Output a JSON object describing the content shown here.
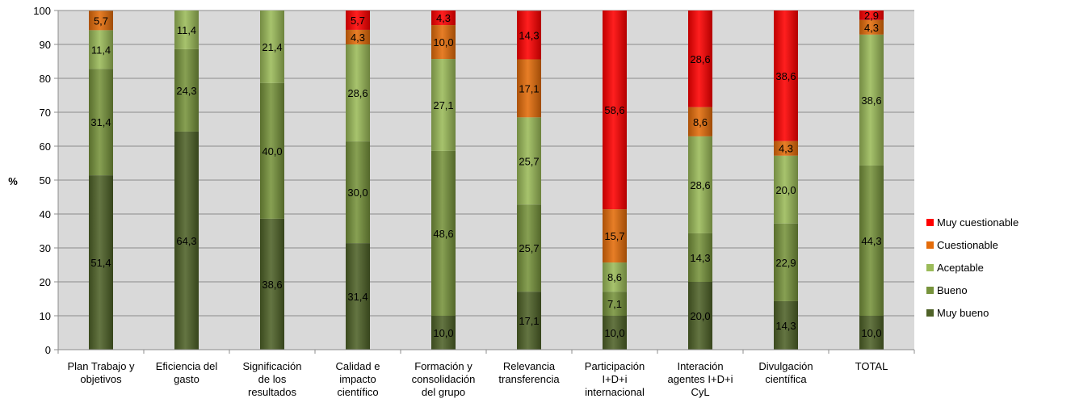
{
  "chart_data": {
    "type": "bar",
    "stacked": true,
    "ylabel": "%",
    "ylim": [
      0,
      100
    ],
    "yticks": [
      0,
      10,
      20,
      30,
      40,
      50,
      60,
      70,
      80,
      90,
      100
    ],
    "grid": true,
    "legend_position": "right",
    "categories": [
      [
        "Plan Trabajo y",
        "objetivos"
      ],
      [
        "Eficiencia del",
        "gasto"
      ],
      [
        "Significación",
        "de los",
        "resultados"
      ],
      [
        "Calidad e",
        "impacto",
        "científico"
      ],
      [
        "Formación y",
        "consolidación",
        "del grupo"
      ],
      [
        "Relevancia",
        "transferencia"
      ],
      [
        "Participación",
        "I+D+i",
        "internacional"
      ],
      [
        "Interación",
        "agentes I+D+i",
        "CyL"
      ],
      [
        "Divulgación",
        "científica"
      ],
      [
        "TOTAL"
      ]
    ],
    "series": [
      {
        "name": "Muy bueno",
        "color": "#4f6228",
        "values": [
          51.4,
          64.3,
          38.6,
          31.4,
          10.0,
          17.1,
          10.0,
          20.0,
          14.3,
          10.0
        ],
        "labels": [
          "51,4",
          "64,3",
          "38,6",
          "31,4",
          "10,0",
          "17,1",
          "10,0",
          "20,0",
          "14,3",
          "10,0"
        ]
      },
      {
        "name": "Bueno",
        "color": "#77933c",
        "values": [
          31.4,
          24.3,
          40.0,
          30.0,
          48.6,
          25.7,
          7.1,
          14.3,
          22.9,
          44.3
        ],
        "labels": [
          "31,4",
          "24,3",
          "40,0",
          "30,0",
          "48,6",
          "25,7",
          "7,1",
          "14,3",
          "22,9",
          "44,3"
        ]
      },
      {
        "name": "Aceptable",
        "color": "#9bbb59",
        "values": [
          11.4,
          11.4,
          21.4,
          28.6,
          27.1,
          25.7,
          8.6,
          28.6,
          20.0,
          38.6
        ],
        "labels": [
          "11,4",
          "11,4",
          "21,4",
          "28,6",
          "27,1",
          "25,7",
          "8,6",
          "28,6",
          "20,0",
          "38,6"
        ]
      },
      {
        "name": "Cuestionable",
        "color": "#e46c0a",
        "values": [
          5.7,
          0,
          0,
          4.3,
          10.0,
          17.1,
          15.7,
          8.6,
          4.3,
          4.3
        ],
        "labels": [
          "5,7",
          "",
          "",
          "4,3",
          "10,0",
          "17,1",
          "15,7",
          "8,6",
          "4,3",
          "4,3"
        ]
      },
      {
        "name": "Muy cuestionable",
        "color": "#ff0000",
        "values": [
          0,
          0,
          0,
          5.7,
          4.3,
          14.3,
          58.6,
          28.6,
          38.6,
          2.9
        ],
        "labels": [
          "",
          "",
          "",
          "5,7",
          "4,3",
          "14,3",
          "58,6",
          "28,6",
          "38,6",
          "2,9"
        ]
      }
    ],
    "legend_order": [
      "Muy cuestionable",
      "Cuestionable",
      "Aceptable",
      "Bueno",
      "Muy bueno"
    ]
  }
}
